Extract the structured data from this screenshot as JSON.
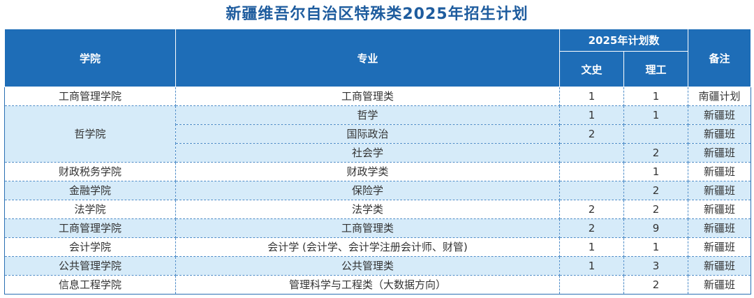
{
  "title": "新疆维吾尔自治区特殊类2025年招生计划",
  "headers": {
    "college": "学院",
    "major": "专业",
    "plan": "2025年计划数",
    "arts": "文史",
    "science": "理工",
    "note": "备注"
  },
  "rows": [
    {
      "college": "工商管理学院",
      "major": "工商管理类",
      "arts": "1",
      "science": "1",
      "note": "南疆计划"
    },
    {
      "college": "哲学院",
      "major": "哲学",
      "arts": "1",
      "science": "1",
      "note": "新疆班"
    },
    {
      "college": "",
      "major": "国际政治",
      "arts": "2",
      "science": "",
      "note": "新疆班"
    },
    {
      "college": "",
      "major": "社会学",
      "arts": "",
      "science": "2",
      "note": "新疆班"
    },
    {
      "college": "财政税务学院",
      "major": "财政学类",
      "arts": "",
      "science": "1",
      "note": "新疆班"
    },
    {
      "college": "金融学院",
      "major": "保险学",
      "arts": "",
      "science": "2",
      "note": "新疆班"
    },
    {
      "college": "法学院",
      "major": "法学类",
      "arts": "2",
      "science": "2",
      "note": "新疆班"
    },
    {
      "college": "工商管理学院",
      "major": "工商管理类",
      "arts": "2",
      "science": "9",
      "note": "新疆班"
    },
    {
      "college": "会计学院",
      "major": "会计学 (会计学、会计学注册会计师、财管)",
      "arts": "1",
      "science": "1",
      "note": "新疆班"
    },
    {
      "college": "公共管理学院",
      "major": "公共管理类",
      "arts": "1",
      "science": "3",
      "note": "新疆班"
    },
    {
      "college": "信息工程学院",
      "major": "管理科学与工程类（大数据方向）",
      "arts": "",
      "science": "2",
      "note": "新疆班"
    }
  ]
}
